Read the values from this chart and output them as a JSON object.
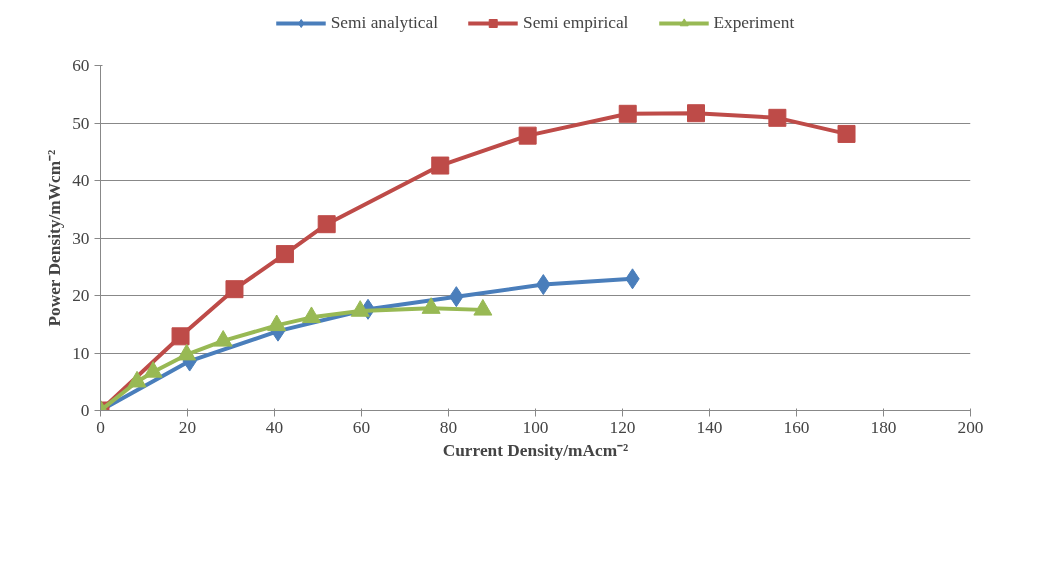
{
  "chart_data": {
    "type": "line",
    "xlabel": "Current Density/mAcm⁻²",
    "ylabel": "Power Density/mWcm⁻²",
    "xlim": [
      0,
      200
    ],
    "xticks": [
      0,
      20,
      40,
      60,
      80,
      100,
      120,
      140,
      160,
      180,
      200
    ],
    "ylim": [
      0,
      60
    ],
    "yticks": [
      0,
      10,
      20,
      30,
      40,
      50,
      60
    ],
    "grid": "y",
    "legend": "top",
    "series": [
      {
        "name": "Semi analytical",
        "color": "#4a7ebb",
        "marker": "diamond",
        "x": [
          0,
          20.5,
          40.8,
          61.5,
          81.8,
          101.8,
          122.3
        ],
        "values": [
          0,
          8.6,
          13.8,
          17.6,
          19.8,
          21.9,
          22.9
        ]
      },
      {
        "name": "Semi empirical",
        "color": "#be4b48",
        "marker": "square",
        "x": [
          0,
          18.4,
          30.8,
          42.4,
          52,
          78.1,
          98.2,
          121.2,
          136.9,
          155.6,
          171.5
        ],
        "values": [
          0,
          12.9,
          21.1,
          27.2,
          32.4,
          42.6,
          47.8,
          51.6,
          51.7,
          50.9,
          48.1
        ]
      },
      {
        "name": "Experiment",
        "color": "#98b954",
        "marker": "triangle",
        "x": [
          0,
          8.4,
          12.1,
          19.8,
          28.2,
          40.5,
          48.5,
          59.7,
          76,
          87.9
        ],
        "values": [
          0,
          5,
          6.7,
          9.7,
          12.1,
          14.8,
          16.2,
          17.3,
          17.8,
          17.5
        ]
      }
    ]
  }
}
